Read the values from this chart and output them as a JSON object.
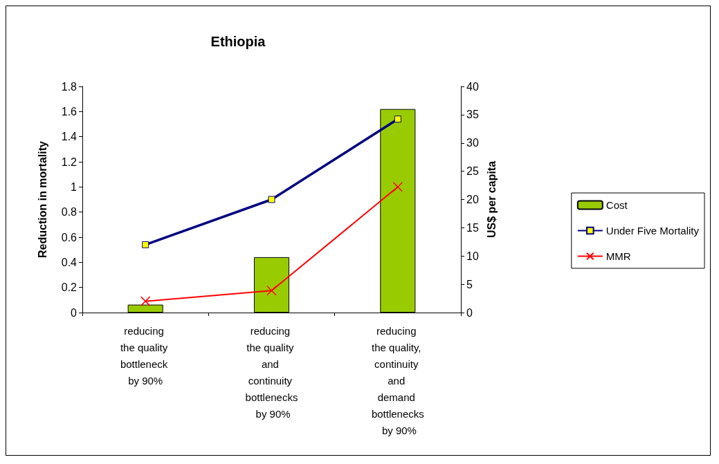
{
  "chart_data": {
    "type": "bar",
    "title": "Ethiopia",
    "ylabel": "Reduction in mortality",
    "y2label": "US$ per capita",
    "categories": [
      "reducing the quality bottleneck by 90%",
      "reducing the quality and continuity bottlenecks by 90%",
      "reducing the quality, continuity and demand bottlenecks by 90%"
    ],
    "series": [
      {
        "name": "Cost",
        "axis": "y2",
        "color": "#99cc00",
        "values": [
          1.4,
          9.8,
          36
        ]
      },
      {
        "name": "Under Five Mortality",
        "type": "line",
        "marker": "square",
        "color": "#000080",
        "values": [
          0.54,
          0.9,
          1.54
        ]
      },
      {
        "name": "MMR",
        "type": "line",
        "marker": "cross",
        "color": "#ff0000",
        "values": [
          0.09,
          0.175,
          1.0
        ]
      }
    ],
    "ylim": [
      0,
      1.8
    ],
    "yticks": [
      0,
      0.2,
      0.4,
      0.6,
      0.8,
      1,
      1.2,
      1.4,
      1.6,
      1.8
    ],
    "y2lim": [
      0,
      40
    ],
    "y2ticks": [
      0,
      5,
      10,
      15,
      20,
      25,
      30,
      35,
      40
    ],
    "legend": "right",
    "grid": false
  }
}
